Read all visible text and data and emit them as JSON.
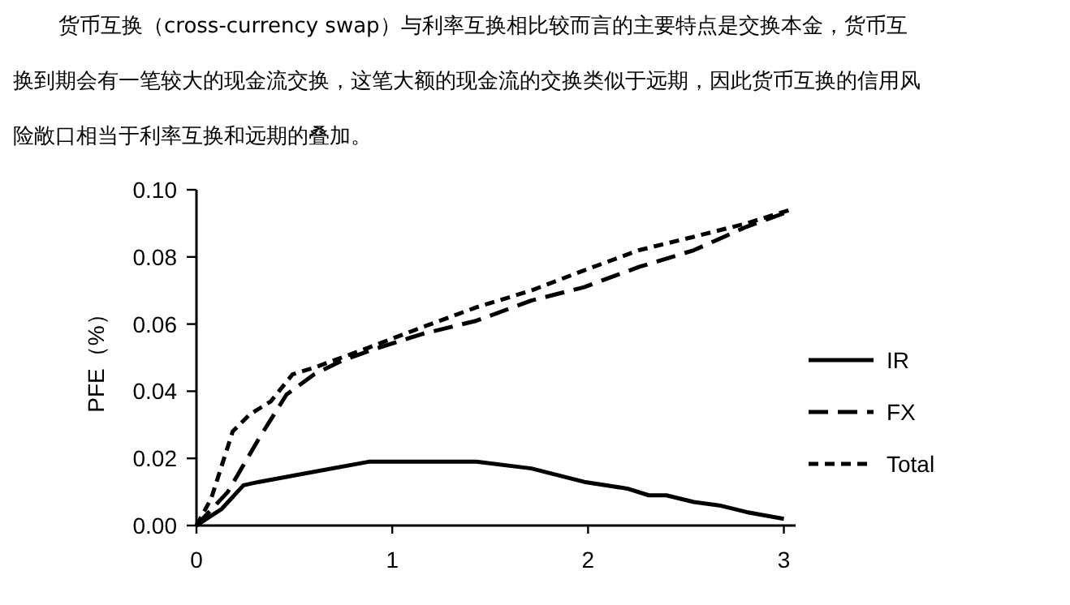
{
  "chart_data": {
    "type": "line",
    "ylabel": "PFE（%）",
    "annotations": [
      "货币互换（cross-currency swap）与利率互换相比较而言的主要特点是交换本金，货币互换到期会有一笔较大的现金流交换，这笔大额的现金流的交换类似于远期，因此货币互换的信用风险敞口相当于利率互换和远期的叠加。"
    ],
    "xlim": [
      0,
      3.06
    ],
    "xticks": [
      0,
      1,
      2,
      3
    ],
    "ylim": [
      0,
      0.1
    ],
    "yticks": [
      {
        "value": 0,
        "label": "0.00"
      },
      {
        "value": 0.02,
        "label": "0.02"
      },
      {
        "value": 0.04,
        "label": "0.04"
      },
      {
        "value": 0.06,
        "label": "0.06"
      },
      {
        "value": 0.08,
        "label": "0.08"
      },
      {
        "value": 0.1,
        "label": "0.10"
      }
    ],
    "grid": false,
    "legend": "right",
    "marker": "none",
    "series": [
      {
        "name": "IR",
        "color": "#000000",
        "line_style": "solid",
        "x": [
          0,
          0.13,
          0.24,
          0.32,
          0.6,
          0.88,
          1.15,
          1.43,
          1.71,
          1.98,
          2.2,
          2.31,
          2.4,
          2.54,
          2.67,
          2.81,
          3.0
        ],
        "values": [
          0,
          0.005,
          0.012,
          0.013,
          0.016,
          0.019,
          0.019,
          0.019,
          0.017,
          0.013,
          0.011,
          0.009,
          0.009,
          0.007,
          0.006,
          0.004,
          0.002
        ]
      },
      {
        "name": "FX",
        "color": "#000000",
        "line_style": "dashed",
        "x": [
          0,
          0.16,
          0.32,
          0.46,
          0.6,
          0.74,
          0.88,
          1.15,
          1.43,
          1.71,
          1.98,
          2.26,
          2.54,
          2.81,
          3.0
        ],
        "values": [
          0,
          0.01,
          0.026,
          0.039,
          0.045,
          0.049,
          0.052,
          0.057,
          0.061,
          0.067,
          0.071,
          0.077,
          0.082,
          0.089,
          0.093
        ]
      },
      {
        "name": "Total",
        "color": "#000000",
        "line_style": "dotted",
        "x": [
          0,
          0.075,
          0.185,
          0.27,
          0.38,
          0.49,
          0.6,
          0.88,
          1.15,
          1.43,
          1.71,
          1.98,
          2.26,
          2.54,
          2.81,
          3.03
        ],
        "values": [
          0,
          0.008,
          0.028,
          0.033,
          0.037,
          0.045,
          0.047,
          0.053,
          0.059,
          0.065,
          0.07,
          0.076,
          0.082,
          0.086,
          0.09,
          0.094
        ]
      }
    ]
  }
}
